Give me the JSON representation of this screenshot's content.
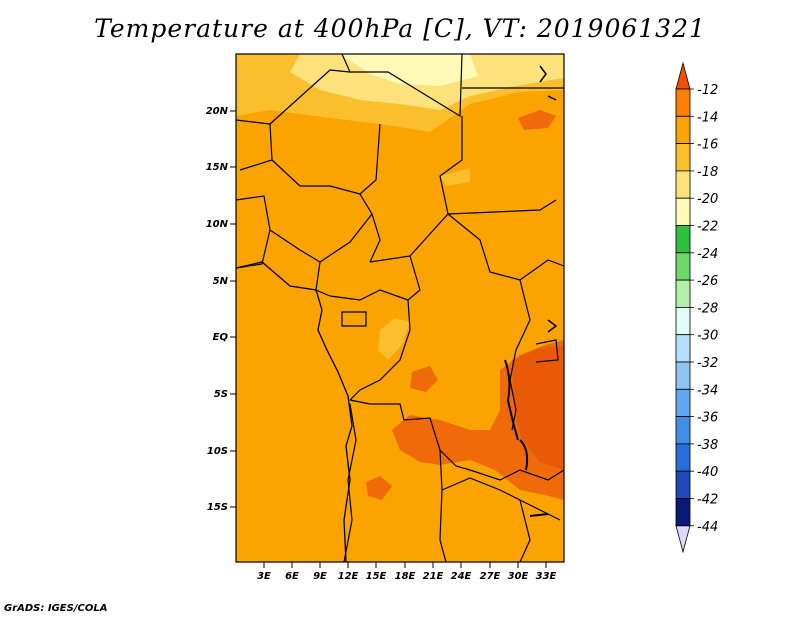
{
  "title": "Temperature at 400hPa [C], VT: 2019061321",
  "credit": "GrADS: IGES/COLA",
  "map": {
    "lat_ticks": [
      "20N",
      "15N",
      "10N",
      "5N",
      "EQ",
      "5S",
      "10S",
      "15S"
    ],
    "lon_ticks": [
      "3E",
      "6E",
      "9E",
      "12E",
      "15E",
      "18E",
      "21E",
      "24E",
      "27E",
      "30E",
      "33E"
    ]
  },
  "colorbar": {
    "labels": [
      "-12",
      "-14",
      "-16",
      "-18",
      "-20",
      "-22",
      "-24",
      "-26",
      "-28",
      "-30",
      "-32",
      "-34",
      "-36",
      "-38",
      "-40",
      "-42",
      "-44"
    ],
    "colors": [
      "#f05000",
      "#fb7f00",
      "#fba300",
      "#fbbf2e",
      "#fde17a",
      "#fff9b8",
      "#2fbf3f",
      "#6fd86b",
      "#b4edac",
      "#e3fbf9",
      "#b5e0fb",
      "#8ec5f5",
      "#5fa8ef",
      "#3f8fe6",
      "#2a6fd8",
      "#1f49b8",
      "#0b1a78",
      "#dcd8f8"
    ]
  }
}
